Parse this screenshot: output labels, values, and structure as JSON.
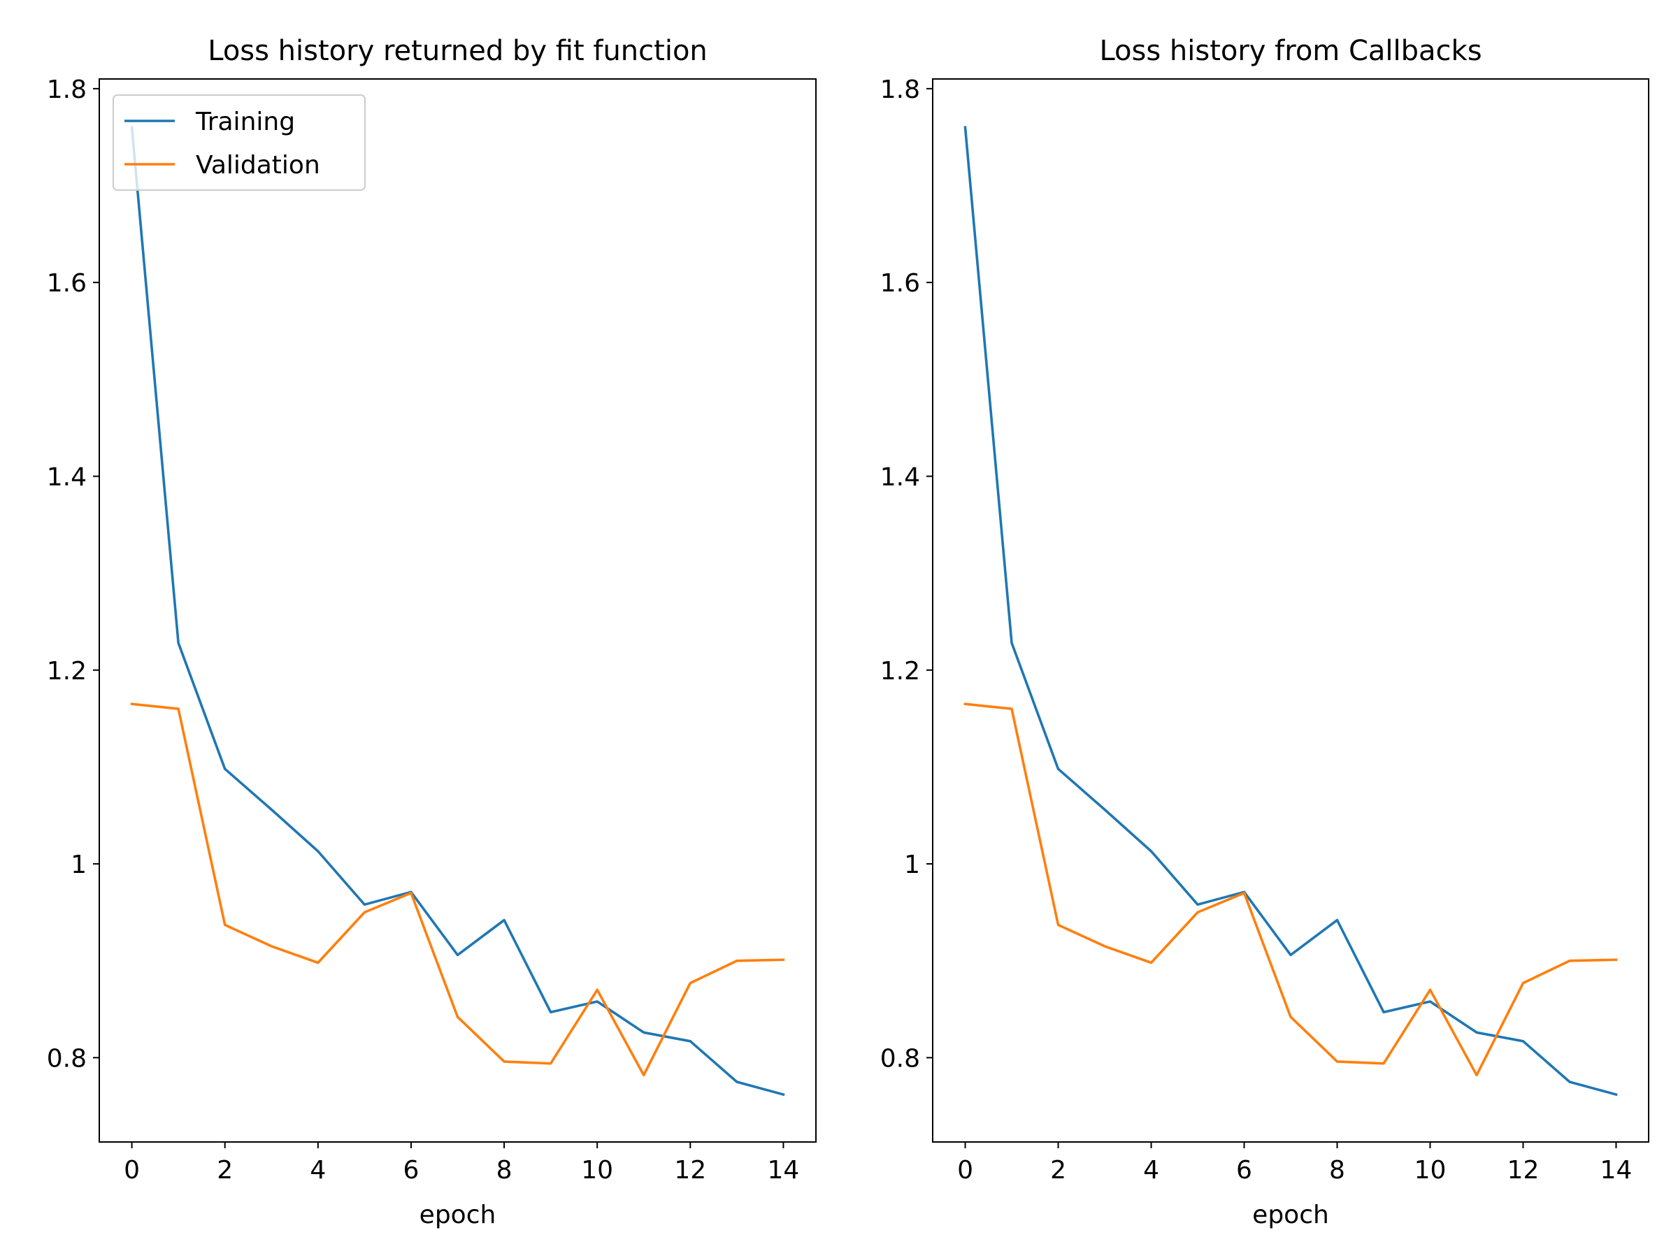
{
  "chart_data": [
    {
      "type": "line",
      "title": "Loss history returned by fit function",
      "xlabel": "epoch",
      "ylabel": "",
      "xlim": [
        -0.7,
        14.7
      ],
      "ylim": [
        0.713,
        1.81
      ],
      "xticks": [
        0,
        2,
        4,
        6,
        8,
        10,
        12,
        14
      ],
      "yticks": [
        0.8,
        1.0,
        1.2,
        1.4,
        1.6,
        1.8
      ],
      "x": [
        0,
        1,
        2,
        3,
        4,
        5,
        6,
        7,
        8,
        9,
        10,
        11,
        12,
        13,
        14
      ],
      "series": [
        {
          "name": "Training",
          "color": "#1f77b4",
          "values": [
            1.76,
            1.228,
            1.098,
            1.056,
            1.013,
            0.958,
            0.971,
            0.906,
            0.942,
            0.847,
            0.858,
            0.826,
            0.817,
            0.775,
            0.762
          ]
        },
        {
          "name": "Validation",
          "color": "#ff7f0e",
          "values": [
            1.165,
            1.16,
            0.937,
            0.915,
            0.898,
            0.95,
            0.97,
            0.842,
            0.796,
            0.794,
            0.87,
            0.782,
            0.877,
            0.9,
            0.901
          ]
        }
      ],
      "legend": {
        "position": "top-left",
        "entries": [
          "Training",
          "Validation"
        ]
      },
      "grid": false
    },
    {
      "type": "line",
      "title": "Loss history from Callbacks",
      "xlabel": "epoch",
      "ylabel": "",
      "xlim": [
        -0.7,
        14.7
      ],
      "ylim": [
        0.713,
        1.81
      ],
      "xticks": [
        0,
        2,
        4,
        6,
        8,
        10,
        12,
        14
      ],
      "yticks": [
        0.8,
        1.0,
        1.2,
        1.4,
        1.6,
        1.8
      ],
      "x": [
        0,
        1,
        2,
        3,
        4,
        5,
        6,
        7,
        8,
        9,
        10,
        11,
        12,
        13,
        14
      ],
      "series": [
        {
          "color": "#1f77b4",
          "values": [
            1.76,
            1.228,
            1.098,
            1.056,
            1.013,
            0.958,
            0.971,
            0.906,
            0.942,
            0.847,
            0.858,
            0.826,
            0.817,
            0.775,
            0.762
          ]
        },
        {
          "color": "#ff7f0e",
          "values": [
            1.165,
            1.16,
            0.937,
            0.915,
            0.898,
            0.95,
            0.97,
            0.842,
            0.796,
            0.794,
            0.87,
            0.782,
            0.877,
            0.9,
            0.901
          ]
        }
      ],
      "grid": false
    }
  ]
}
